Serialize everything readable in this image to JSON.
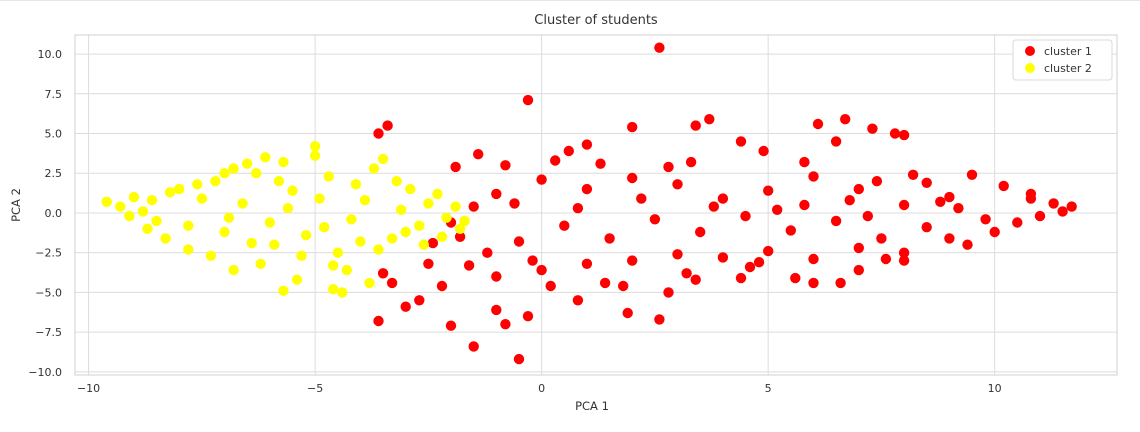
{
  "chart_data": {
    "type": "scatter",
    "title": "Cluster of students",
    "xlabel": "PCA 1",
    "ylabel": "PCA 2",
    "xlim": [
      -10.3,
      12.7
    ],
    "ylim": [
      -10.2,
      11.2
    ],
    "grid": true,
    "legend": "top-right",
    "xticks": [
      -10,
      -5,
      0,
      5,
      10
    ],
    "xtick_labels": [
      "−10",
      "−5",
      "0",
      "5",
      "10"
    ],
    "yticks": [
      -10,
      -7.5,
      -5,
      -2.5,
      0,
      2.5,
      5,
      7.5,
      10
    ],
    "ytick_labels": [
      "−10.0",
      "−7.5",
      "−5.0",
      "−2.5",
      "0.0",
      "2.5",
      "5.0",
      "7.5",
      "10.0"
    ],
    "series": [
      {
        "name": "cluster 1",
        "color": "#ff0000",
        "points": [
          [
            2.6,
            10.4
          ],
          [
            -0.3,
            7.1
          ],
          [
            -3.6,
            5.0
          ],
          [
            -3.4,
            5.5
          ],
          [
            3.4,
            5.5
          ],
          [
            7.3,
            5.3
          ],
          [
            6.7,
            5.9
          ],
          [
            6.1,
            5.6
          ],
          [
            7.8,
            5.0
          ],
          [
            4.4,
            4.5
          ],
          [
            8.0,
            4.9
          ],
          [
            3.7,
            5.9
          ],
          [
            2.0,
            5.4
          ],
          [
            1.0,
            4.3
          ],
          [
            3.3,
            3.2
          ],
          [
            4.9,
            3.9
          ],
          [
            8.2,
            2.4
          ],
          [
            6.5,
            4.5
          ],
          [
            7.4,
            2.0
          ],
          [
            5.8,
            3.2
          ],
          [
            -1.4,
            3.7
          ],
          [
            0.6,
            3.9
          ],
          [
            1.3,
            3.1
          ],
          [
            2.8,
            2.9
          ],
          [
            -0.8,
            3.0
          ],
          [
            0.3,
            3.3
          ],
          [
            -1.9,
            2.9
          ],
          [
            9.5,
            2.4
          ],
          [
            10.2,
            1.7
          ],
          [
            10.8,
            1.2
          ],
          [
            11.3,
            0.6
          ],
          [
            11.7,
            0.4
          ],
          [
            11.0,
            -0.2
          ],
          [
            10.5,
            -0.6
          ],
          [
            10.0,
            -1.2
          ],
          [
            9.4,
            -2.0
          ],
          [
            8.5,
            1.9
          ],
          [
            9.0,
            1.0
          ],
          [
            8.0,
            0.5
          ],
          [
            7.0,
            1.5
          ],
          [
            6.0,
            2.3
          ],
          [
            5.0,
            1.4
          ],
          [
            4.0,
            0.9
          ],
          [
            3.0,
            1.8
          ],
          [
            2.0,
            2.2
          ],
          [
            1.0,
            1.5
          ],
          [
            0.0,
            2.1
          ],
          [
            -1.0,
            1.2
          ],
          [
            -1.5,
            0.4
          ],
          [
            -2.0,
            -0.6
          ],
          [
            -1.8,
            -1.5
          ],
          [
            -2.4,
            -1.9
          ],
          [
            -1.2,
            -2.5
          ],
          [
            -0.5,
            -1.8
          ],
          [
            0.5,
            -0.8
          ],
          [
            1.5,
            -1.6
          ],
          [
            2.5,
            -0.4
          ],
          [
            3.5,
            -1.2
          ],
          [
            4.5,
            -0.2
          ],
          [
            5.5,
            -1.1
          ],
          [
            6.5,
            -0.5
          ],
          [
            7.5,
            -1.6
          ],
          [
            8.5,
            -0.9
          ],
          [
            9.2,
            0.3
          ],
          [
            6.8,
            0.8
          ],
          [
            5.2,
            0.2
          ],
          [
            3.8,
            0.4
          ],
          [
            2.2,
            0.9
          ],
          [
            0.8,
            0.3
          ],
          [
            -0.6,
            0.6
          ],
          [
            -3.5,
            -3.8
          ],
          [
            -3.6,
            -6.8
          ],
          [
            -3.0,
            -5.9
          ],
          [
            -2.0,
            -7.1
          ],
          [
            -1.5,
            -8.4
          ],
          [
            -0.5,
            -9.2
          ],
          [
            -0.3,
            -6.5
          ],
          [
            0.8,
            -5.5
          ],
          [
            1.8,
            -4.6
          ],
          [
            2.6,
            -6.7
          ],
          [
            3.4,
            -4.2
          ],
          [
            4.4,
            -4.1
          ],
          [
            5.6,
            -4.1
          ],
          [
            6.0,
            -4.4
          ],
          [
            7.0,
            -3.6
          ],
          [
            8.0,
            -3.0
          ],
          [
            6.6,
            -4.4
          ],
          [
            1.9,
            -6.3
          ],
          [
            0.2,
            -4.6
          ],
          [
            -1.0,
            -6.1
          ],
          [
            -2.7,
            -5.5
          ],
          [
            -3.3,
            -4.4
          ],
          [
            -2.5,
            -3.2
          ],
          [
            -1.0,
            -4.0
          ],
          [
            0.0,
            -3.6
          ],
          [
            1.0,
            -3.2
          ],
          [
            2.0,
            -3.0
          ],
          [
            3.0,
            -2.6
          ],
          [
            4.0,
            -2.8
          ],
          [
            5.0,
            -2.4
          ],
          [
            6.0,
            -2.9
          ],
          [
            7.0,
            -2.2
          ],
          [
            8.0,
            -2.5
          ],
          [
            9.0,
            -1.6
          ],
          [
            4.8,
            -3.1
          ],
          [
            3.2,
            -3.8
          ],
          [
            1.4,
            -4.4
          ],
          [
            -0.2,
            -3.0
          ],
          [
            -1.6,
            -3.3
          ],
          [
            -2.2,
            -4.6
          ],
          [
            -0.8,
            -7.0
          ],
          [
            2.8,
            -5.0
          ],
          [
            4.6,
            -3.4
          ],
          [
            7.6,
            -2.9
          ],
          [
            10.8,
            0.9
          ],
          [
            11.5,
            0.1
          ],
          [
            9.8,
            -0.4
          ],
          [
            8.8,
            0.7
          ],
          [
            7.2,
            -0.2
          ],
          [
            5.8,
            0.5
          ]
        ]
      },
      {
        "name": "cluster 2",
        "color": "#ffff00",
        "points": [
          [
            -9.6,
            0.7
          ],
          [
            -9.3,
            0.4
          ],
          [
            -9.0,
            1.0
          ],
          [
            -8.8,
            0.1
          ],
          [
            -8.5,
            -0.5
          ],
          [
            -8.2,
            1.3
          ],
          [
            -8.0,
            1.5
          ],
          [
            -7.8,
            -0.8
          ],
          [
            -7.5,
            0.9
          ],
          [
            -7.2,
            2.0
          ],
          [
            -7.0,
            -1.2
          ],
          [
            -6.8,
            2.8
          ],
          [
            -6.5,
            3.1
          ],
          [
            -6.3,
            2.5
          ],
          [
            -6.1,
            3.5
          ],
          [
            -5.9,
            -2.0
          ],
          [
            -5.7,
            3.2
          ],
          [
            -5.5,
            1.4
          ],
          [
            -5.3,
            -2.7
          ],
          [
            -5.0,
            4.2
          ],
          [
            -5.0,
            3.6
          ],
          [
            -4.8,
            -0.9
          ],
          [
            -4.7,
            2.3
          ],
          [
            -4.5,
            -2.5
          ],
          [
            -4.3,
            -3.6
          ],
          [
            -4.6,
            -3.3
          ],
          [
            -4.1,
            1.8
          ],
          [
            -3.9,
            0.8
          ],
          [
            -3.7,
            2.8
          ],
          [
            -3.5,
            3.4
          ],
          [
            -3.3,
            -1.6
          ],
          [
            -3.1,
            0.2
          ],
          [
            -2.9,
            1.5
          ],
          [
            -2.7,
            -0.8
          ],
          [
            -2.5,
            0.6
          ],
          [
            -2.3,
            1.2
          ],
          [
            -2.1,
            -0.3
          ],
          [
            -1.9,
            0.4
          ],
          [
            -1.8,
            -1.0
          ],
          [
            -1.7,
            -0.5
          ],
          [
            -5.7,
            -4.9
          ],
          [
            -5.4,
            -4.2
          ],
          [
            -4.6,
            -4.8
          ],
          [
            -4.4,
            -5.0
          ],
          [
            -3.8,
            -4.4
          ],
          [
            -6.8,
            -3.6
          ],
          [
            -6.2,
            -3.2
          ],
          [
            -7.3,
            -2.7
          ],
          [
            -7.8,
            -2.3
          ],
          [
            -8.3,
            -1.6
          ],
          [
            -8.7,
            -1.0
          ],
          [
            -9.1,
            -0.2
          ],
          [
            -6.0,
            -0.6
          ],
          [
            -5.6,
            0.3
          ],
          [
            -5.2,
            -1.4
          ],
          [
            -4.9,
            0.9
          ],
          [
            -4.2,
            -0.4
          ],
          [
            -3.6,
            -2.3
          ],
          [
            -3.0,
            -1.2
          ],
          [
            -2.6,
            -2.0
          ],
          [
            -6.6,
            0.6
          ],
          [
            -7.6,
            1.8
          ],
          [
            -8.6,
            0.8
          ],
          [
            -7.0,
            2.5
          ],
          [
            -6.4,
            -1.9
          ],
          [
            -5.8,
            2.0
          ],
          [
            -4.0,
            -1.8
          ],
          [
            -3.2,
            2.0
          ],
          [
            -2.2,
            -1.5
          ],
          [
            -6.9,
            -0.3
          ]
        ]
      }
    ]
  }
}
